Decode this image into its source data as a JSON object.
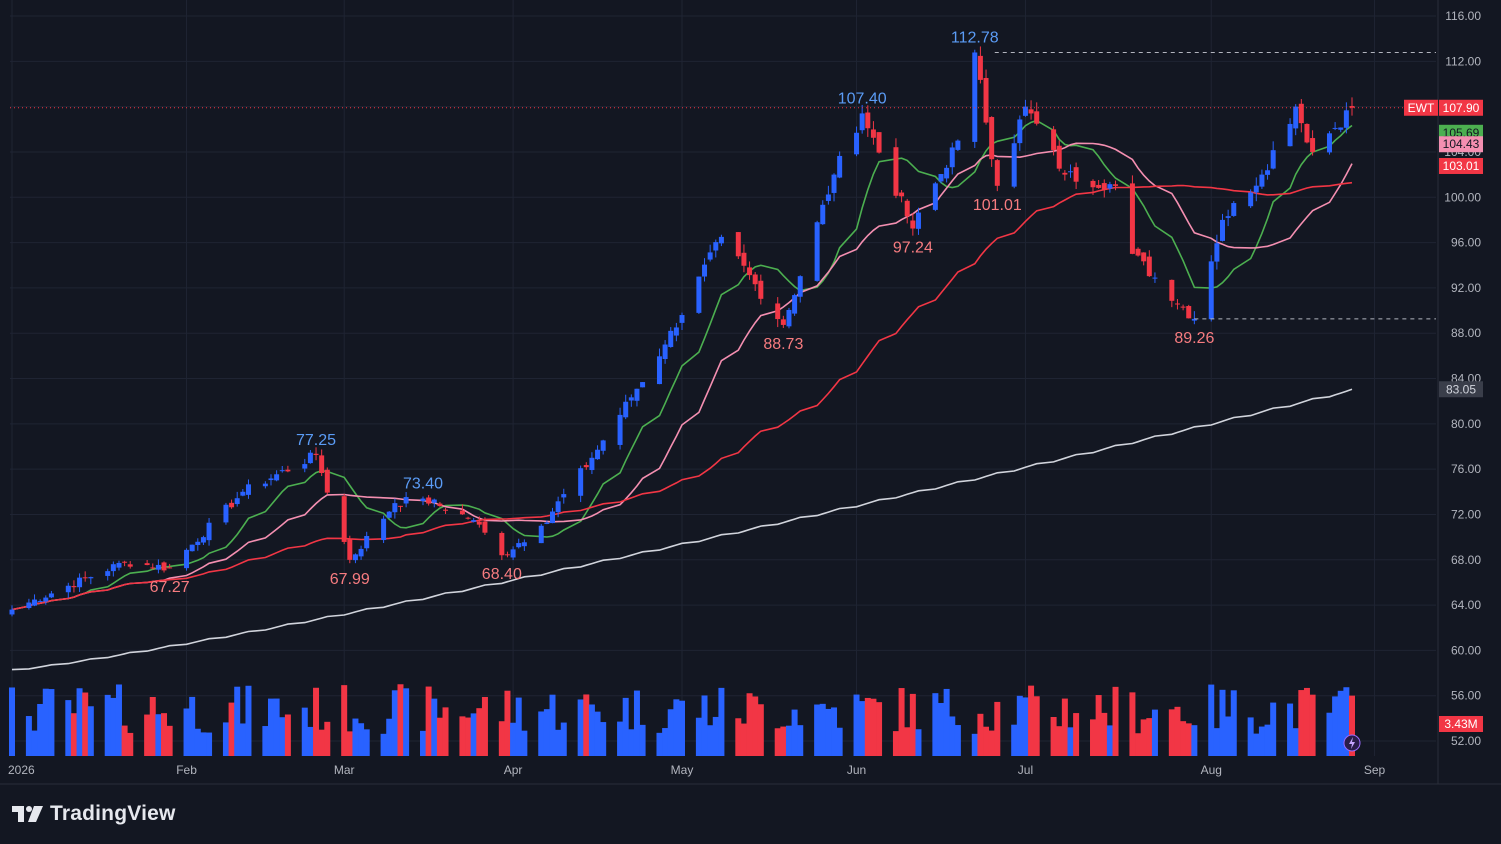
{
  "symbol": "EWT",
  "brand": {
    "name": "TradingView",
    "logo_icon": "tradingview-logo-icon"
  },
  "colors": {
    "background": "#131722",
    "grid": "#1f2433",
    "up": "#2962ff",
    "down": "#f23645",
    "text": "#b2b5be",
    "sma10": "#4caf50",
    "sma20": "#f48fb1",
    "sma50": "#f23645",
    "sma200": "#d1d4dc",
    "high_label": "#5b9cf6",
    "low_label": "#f77c80"
  },
  "price_axis": {
    "ticks": [
      "116.00",
      "112.00",
      "108.00",
      "104.00",
      "100.00",
      "96.00",
      "92.00",
      "88.00",
      "84.00",
      "80.00",
      "76.00",
      "72.00",
      "68.00",
      "64.00",
      "60.00",
      "56.00",
      "52.00"
    ],
    "last_price_label": "107.90",
    "ma_labels": [
      {
        "text": "105.69",
        "series": "sma10"
      },
      {
        "text": "104.43",
        "series": "sma20"
      },
      {
        "text": "103.01",
        "series": "sma50"
      },
      {
        "text": "83.05",
        "series": "sma200"
      }
    ],
    "volume_label": "3.43M"
  },
  "time_axis": {
    "labels": [
      "2026",
      "Feb",
      "Mar",
      "Apr",
      "May",
      "Jun",
      "Jul",
      "Aug",
      "Sep"
    ]
  },
  "annotations": {
    "highs": [
      "77.25",
      "73.40",
      "107.40",
      "112.78"
    ],
    "lows": [
      "67.27",
      "67.99",
      "68.40",
      "88.73",
      "97.24",
      "101.01",
      "89.26"
    ]
  },
  "chart_data": {
    "type": "candlestick",
    "symbol": "EWT",
    "interval": "daily",
    "x_start": "2026-01-02",
    "x_end": "2026-08-28",
    "ylim": [
      52,
      116
    ],
    "last_price": 107.9,
    "last_volume": "3.43M",
    "moving_averages": {
      "sma10_last": 105.69,
      "sma20_last": 104.43,
      "sma50_last": 103.01,
      "sma200_last": 83.05
    },
    "anchors": [
      [
        "2026-01-02",
        63.6
      ],
      [
        "2026-01-22",
        67.8
      ],
      [
        "2026-01-30",
        67.27
      ],
      [
        "2026-02-12",
        74.0
      ],
      [
        "2026-02-25",
        77.25
      ],
      [
        "2026-03-03",
        67.99
      ],
      [
        "2026-03-11",
        73.0
      ],
      [
        "2026-03-16",
        73.4
      ],
      [
        "2026-03-25",
        71.5
      ],
      [
        "2026-03-30",
        68.4
      ],
      [
        "2026-04-06",
        71.0
      ],
      [
        "2026-04-15",
        77.0
      ],
      [
        "2026-04-28",
        87.0
      ],
      [
        "2026-05-08",
        96.5
      ],
      [
        "2026-05-19",
        88.73
      ],
      [
        "2026-05-28",
        102.0
      ],
      [
        "2026-06-02",
        107.4
      ],
      [
        "2026-06-11",
        97.24
      ],
      [
        "2026-06-19",
        105.0
      ],
      [
        "2026-06-22",
        112.78
      ],
      [
        "2026-06-26",
        101.01
      ],
      [
        "2026-07-01",
        108.0
      ],
      [
        "2026-07-08",
        102.0
      ],
      [
        "2026-07-17",
        101.0
      ],
      [
        "2026-07-20",
        95.0
      ],
      [
        "2026-07-31",
        89.26
      ],
      [
        "2026-08-05",
        98.0
      ],
      [
        "2026-08-12",
        102.0
      ],
      [
        "2026-08-18",
        108.0
      ],
      [
        "2026-08-21",
        104.0
      ],
      [
        "2026-08-28",
        107.9
      ]
    ]
  }
}
